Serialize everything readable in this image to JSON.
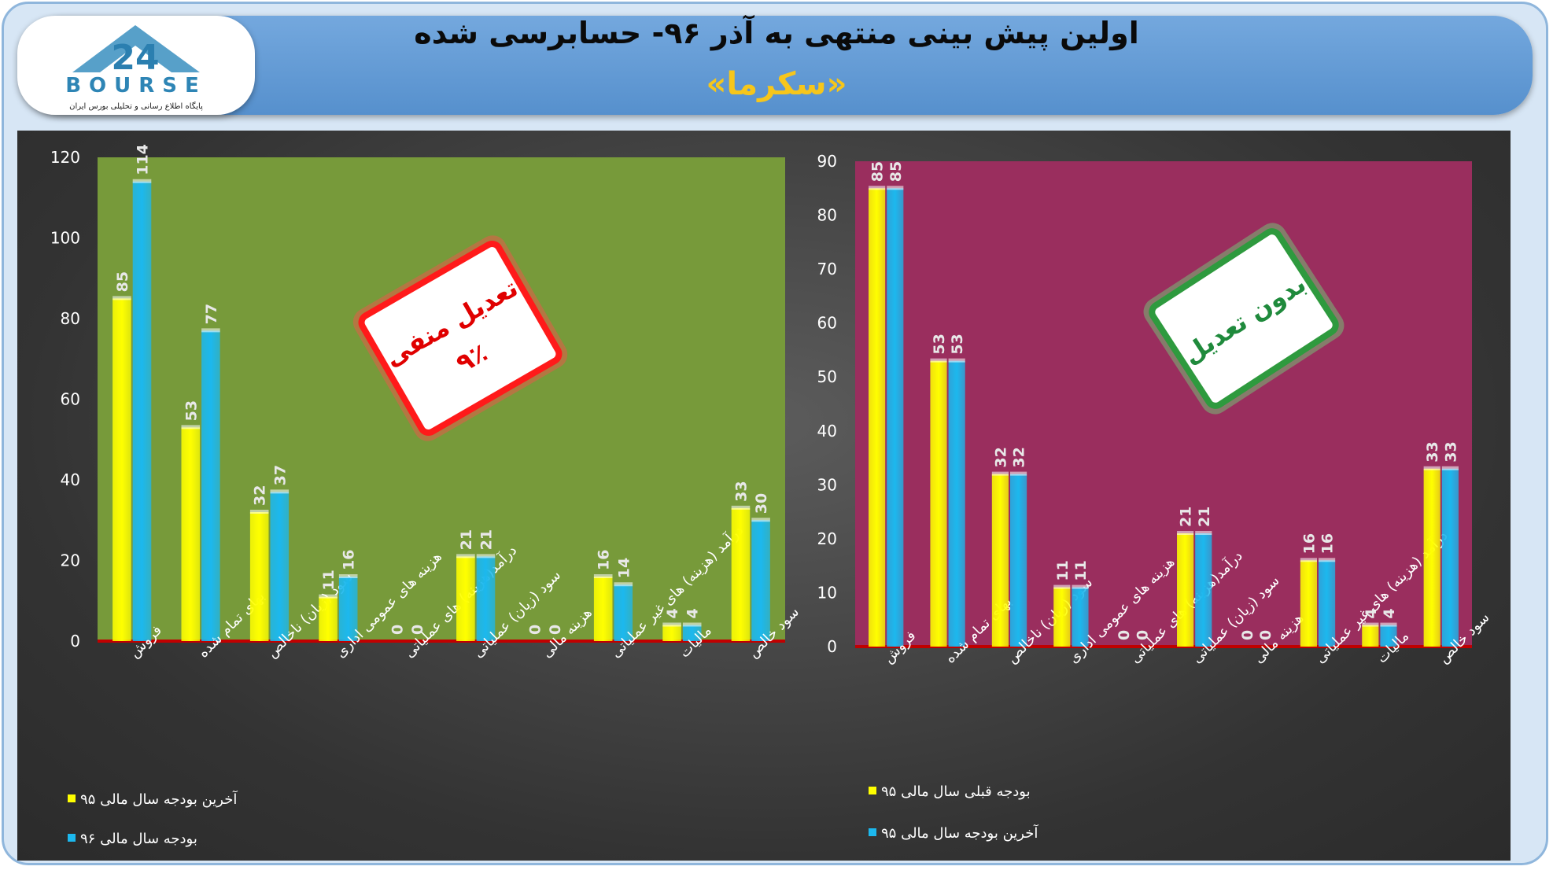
{
  "header": {
    "title": "اولین پیش بینی منتهی به آذر ۹۶- حسابرسی شده",
    "subtitle": "«سکرما»"
  },
  "logo": {
    "word": "BOURSE",
    "tagline": "پایگاه اطلاع رسانی و تحلیلی بورس ایران"
  },
  "colors": {
    "yellow": "#ffff00",
    "cyan": "#1cb8ee",
    "left_plot_bg": "#779a3a",
    "right_plot_bg": "#9a2e5e",
    "baseline": "#c00000"
  },
  "chart_data": [
    {
      "type": "bar",
      "categories": [
        "فروش",
        "بهای تمام شده",
        "سود (زیان) ناخالص",
        "هزینه های عمومی اداری",
        "درآمد(هزینه) های عملیاتی",
        "سود (زیان) عملیاتی",
        "هزینه مالی",
        "درآمد (هزینه) های غیر عملیاتی",
        "مالیات",
        "سود خالص"
      ],
      "series": [
        {
          "name": "آخرین بودجه سال مالی ۹۵",
          "color": "#ffff00",
          "values": [
            85,
            53,
            32,
            11,
            0,
            21,
            0,
            16,
            4,
            33
          ]
        },
        {
          "name": "بودجه سال مالی ۹۶",
          "color": "#1cb8ee",
          "values": [
            114,
            77,
            37,
            16,
            0,
            21,
            0,
            14,
            4,
            30
          ]
        }
      ],
      "ylim": [
        0,
        120
      ],
      "yticks": [
        0,
        20,
        40,
        60,
        80,
        100,
        120
      ],
      "legend_position": "bottom-left",
      "annotation": {
        "line1": "تعدیل منفی",
        "line2": "۹٪",
        "color": "#e00000"
      }
    },
    {
      "type": "bar",
      "categories": [
        "فروش",
        "بهای تمام شده",
        "سود (زیان) ناخالص",
        "هزینه های عمومی اداری",
        "درآمد(هزینه) های عملیاتی",
        "سود (زیان) عملیاتی",
        "هزینه مالی",
        "درآمد (هزینه) های غیر عملیاتی",
        "مالیات",
        "سود خالص"
      ],
      "series": [
        {
          "name": "بودجه قبلی سال مالی ۹۵",
          "color": "#ffff00",
          "values": [
            85,
            53,
            32,
            11,
            0,
            21,
            0,
            16,
            4,
            33
          ]
        },
        {
          "name": "آخرین بودجه سال مالی ۹۵",
          "color": "#1cb8ee",
          "values": [
            85,
            53,
            32,
            11,
            0,
            21,
            0,
            16,
            4,
            33
          ]
        }
      ],
      "ylim": [
        0,
        90
      ],
      "yticks": [
        0,
        10,
        20,
        30,
        40,
        50,
        60,
        70,
        80,
        90
      ],
      "legend_position": "bottom-left",
      "annotation": {
        "line1": "بدون تعدیل",
        "line2": "",
        "color": "#1f8a3c"
      }
    }
  ]
}
